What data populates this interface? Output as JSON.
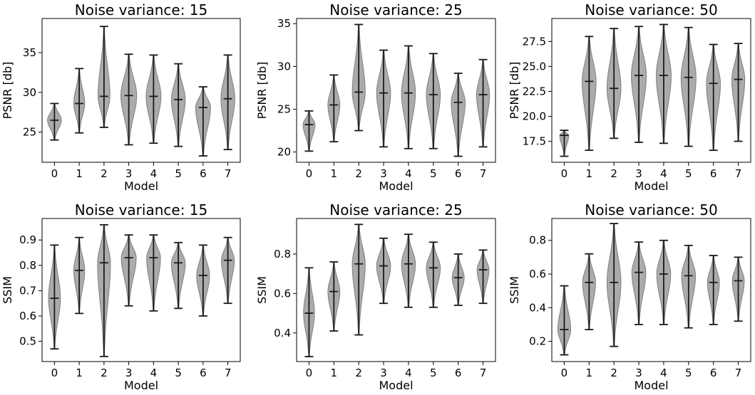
{
  "colors": {
    "violin_fill": "#a6a6a6",
    "violin_edge": "#7f7f7f",
    "line": "#1a1a1a",
    "axes": "#000000"
  },
  "chart_data": [
    {
      "type": "violin",
      "title": "Noise variance: 15",
      "xlabel": "Model",
      "ylabel": "PSNR [db]",
      "categories": [
        "0",
        "1",
        "2",
        "3",
        "4",
        "5",
        "6",
        "7"
      ],
      "ylim": [
        21.2,
        39.3
      ],
      "yticks": [
        25,
        30,
        35
      ],
      "ytick_labels": [
        "25",
        "30",
        "35"
      ],
      "stats": [
        {
          "min": 24.0,
          "median": 26.5,
          "max": 28.6
        },
        {
          "min": 24.9,
          "median": 28.6,
          "max": 33.0
        },
        {
          "min": 25.6,
          "median": 29.5,
          "max": 38.3
        },
        {
          "min": 23.4,
          "median": 29.6,
          "max": 34.8
        },
        {
          "min": 23.6,
          "median": 29.5,
          "max": 34.7
        },
        {
          "min": 23.2,
          "median": 29.1,
          "max": 33.6
        },
        {
          "min": 22.0,
          "median": 28.1,
          "max": 30.7
        },
        {
          "min": 22.8,
          "median": 29.2,
          "max": 34.7
        }
      ],
      "widths": [
        0.28,
        0.22,
        0.24,
        0.32,
        0.3,
        0.28,
        0.3,
        0.28
      ]
    },
    {
      "type": "violin",
      "title": "Noise variance: 25",
      "xlabel": "Model",
      "ylabel": "PSNR [db]",
      "categories": [
        "0",
        "1",
        "2",
        "3",
        "4",
        "5",
        "6",
        "7"
      ],
      "ylim": [
        18.8,
        35.6
      ],
      "yticks": [
        20,
        25,
        30,
        35
      ],
      "ytick_labels": [
        "20",
        "25",
        "30",
        "35"
      ],
      "stats": [
        {
          "min": 20.1,
          "median": 23.2,
          "max": 24.8
        },
        {
          "min": 21.2,
          "median": 25.5,
          "max": 29.0
        },
        {
          "min": 22.5,
          "median": 27.0,
          "max": 34.9
        },
        {
          "min": 20.6,
          "median": 26.9,
          "max": 31.9
        },
        {
          "min": 20.4,
          "median": 26.9,
          "max": 32.4
        },
        {
          "min": 20.4,
          "median": 26.7,
          "max": 31.5
        },
        {
          "min": 19.5,
          "median": 25.8,
          "max": 29.2
        },
        {
          "min": 20.6,
          "median": 26.7,
          "max": 30.8
        }
      ],
      "widths": [
        0.24,
        0.24,
        0.26,
        0.28,
        0.28,
        0.28,
        0.28,
        0.26
      ]
    },
    {
      "type": "violin",
      "title": "Noise variance: 50",
      "xlabel": "Model",
      "ylabel": "PSNR [db]",
      "categories": [
        "0",
        "1",
        "2",
        "3",
        "4",
        "5",
        "6",
        "7"
      ],
      "ylim": [
        15.4,
        29.8
      ],
      "yticks": [
        17.5,
        20.0,
        22.5,
        25.0,
        27.5
      ],
      "ytick_labels": [
        "17.5",
        "20.0",
        "22.5",
        "25.0",
        "27.5"
      ],
      "stats": [
        {
          "min": 16.0,
          "median": 18.1,
          "max": 18.6
        },
        {
          "min": 16.6,
          "median": 23.5,
          "max": 28.0
        },
        {
          "min": 17.8,
          "median": 22.8,
          "max": 28.8
        },
        {
          "min": 17.4,
          "median": 24.1,
          "max": 29.0
        },
        {
          "min": 17.3,
          "median": 24.1,
          "max": 29.2
        },
        {
          "min": 17.0,
          "median": 23.9,
          "max": 28.9
        },
        {
          "min": 16.6,
          "median": 23.3,
          "max": 27.2
        },
        {
          "min": 17.5,
          "median": 23.7,
          "max": 27.3
        }
      ],
      "widths": [
        0.18,
        0.28,
        0.28,
        0.3,
        0.3,
        0.3,
        0.28,
        0.26
      ]
    },
    {
      "type": "violin",
      "title": "Noise variance: 15",
      "xlabel": "Model",
      "ylabel": "SSIM",
      "categories": [
        "0",
        "1",
        "2",
        "3",
        "4",
        "5",
        "6",
        "7"
      ],
      "ylim": [
        0.42,
        0.985
      ],
      "yticks": [
        0.5,
        0.6,
        0.7,
        0.8,
        0.9
      ],
      "ytick_labels": [
        "0.5",
        "0.6",
        "0.7",
        "0.8",
        "0.9"
      ],
      "stats": [
        {
          "min": 0.47,
          "median": 0.67,
          "max": 0.88
        },
        {
          "min": 0.61,
          "median": 0.78,
          "max": 0.91
        },
        {
          "min": 0.44,
          "median": 0.81,
          "max": 0.96
        },
        {
          "min": 0.64,
          "median": 0.83,
          "max": 0.92
        },
        {
          "min": 0.62,
          "median": 0.83,
          "max": 0.92
        },
        {
          "min": 0.63,
          "median": 0.81,
          "max": 0.89
        },
        {
          "min": 0.6,
          "median": 0.76,
          "max": 0.88
        },
        {
          "min": 0.65,
          "median": 0.82,
          "max": 0.91
        }
      ],
      "widths": [
        0.24,
        0.22,
        0.26,
        0.3,
        0.28,
        0.28,
        0.26,
        0.26
      ]
    },
    {
      "type": "violin",
      "title": "Noise variance: 25",
      "xlabel": "Model",
      "ylabel": "SSIM",
      "categories": [
        "0",
        "1",
        "2",
        "3",
        "4",
        "5",
        "6",
        "7"
      ],
      "ylim": [
        0.255,
        0.98
      ],
      "yticks": [
        0.4,
        0.6,
        0.8
      ],
      "ytick_labels": [
        "0.4",
        "0.6",
        "0.8"
      ],
      "stats": [
        {
          "min": 0.28,
          "median": 0.5,
          "max": 0.73
        },
        {
          "min": 0.41,
          "median": 0.61,
          "max": 0.76
        },
        {
          "min": 0.39,
          "median": 0.75,
          "max": 0.95
        },
        {
          "min": 0.55,
          "median": 0.74,
          "max": 0.88
        },
        {
          "min": 0.53,
          "median": 0.75,
          "max": 0.9
        },
        {
          "min": 0.53,
          "median": 0.73,
          "max": 0.86
        },
        {
          "min": 0.54,
          "median": 0.68,
          "max": 0.8
        },
        {
          "min": 0.55,
          "median": 0.72,
          "max": 0.82
        }
      ],
      "widths": [
        0.22,
        0.24,
        0.26,
        0.28,
        0.28,
        0.28,
        0.24,
        0.24
      ]
    },
    {
      "type": "violin",
      "title": "Noise variance: 50",
      "xlabel": "Model",
      "ylabel": "SSIM",
      "categories": [
        "0",
        "1",
        "2",
        "3",
        "4",
        "5",
        "6",
        "7"
      ],
      "ylim": [
        0.08,
        0.93
      ],
      "yticks": [
        0.2,
        0.4,
        0.6,
        0.8
      ],
      "ytick_labels": [
        "0.2",
        "0.4",
        "0.6",
        "0.8"
      ],
      "stats": [
        {
          "min": 0.12,
          "median": 0.27,
          "max": 0.53
        },
        {
          "min": 0.27,
          "median": 0.55,
          "max": 0.72
        },
        {
          "min": 0.17,
          "median": 0.55,
          "max": 0.9
        },
        {
          "min": 0.3,
          "median": 0.61,
          "max": 0.79
        },
        {
          "min": 0.3,
          "median": 0.6,
          "max": 0.8
        },
        {
          "min": 0.28,
          "median": 0.59,
          "max": 0.77
        },
        {
          "min": 0.3,
          "median": 0.55,
          "max": 0.71
        },
        {
          "min": 0.32,
          "median": 0.56,
          "max": 0.7
        }
      ],
      "widths": [
        0.26,
        0.26,
        0.28,
        0.28,
        0.28,
        0.28,
        0.24,
        0.24
      ]
    }
  ]
}
